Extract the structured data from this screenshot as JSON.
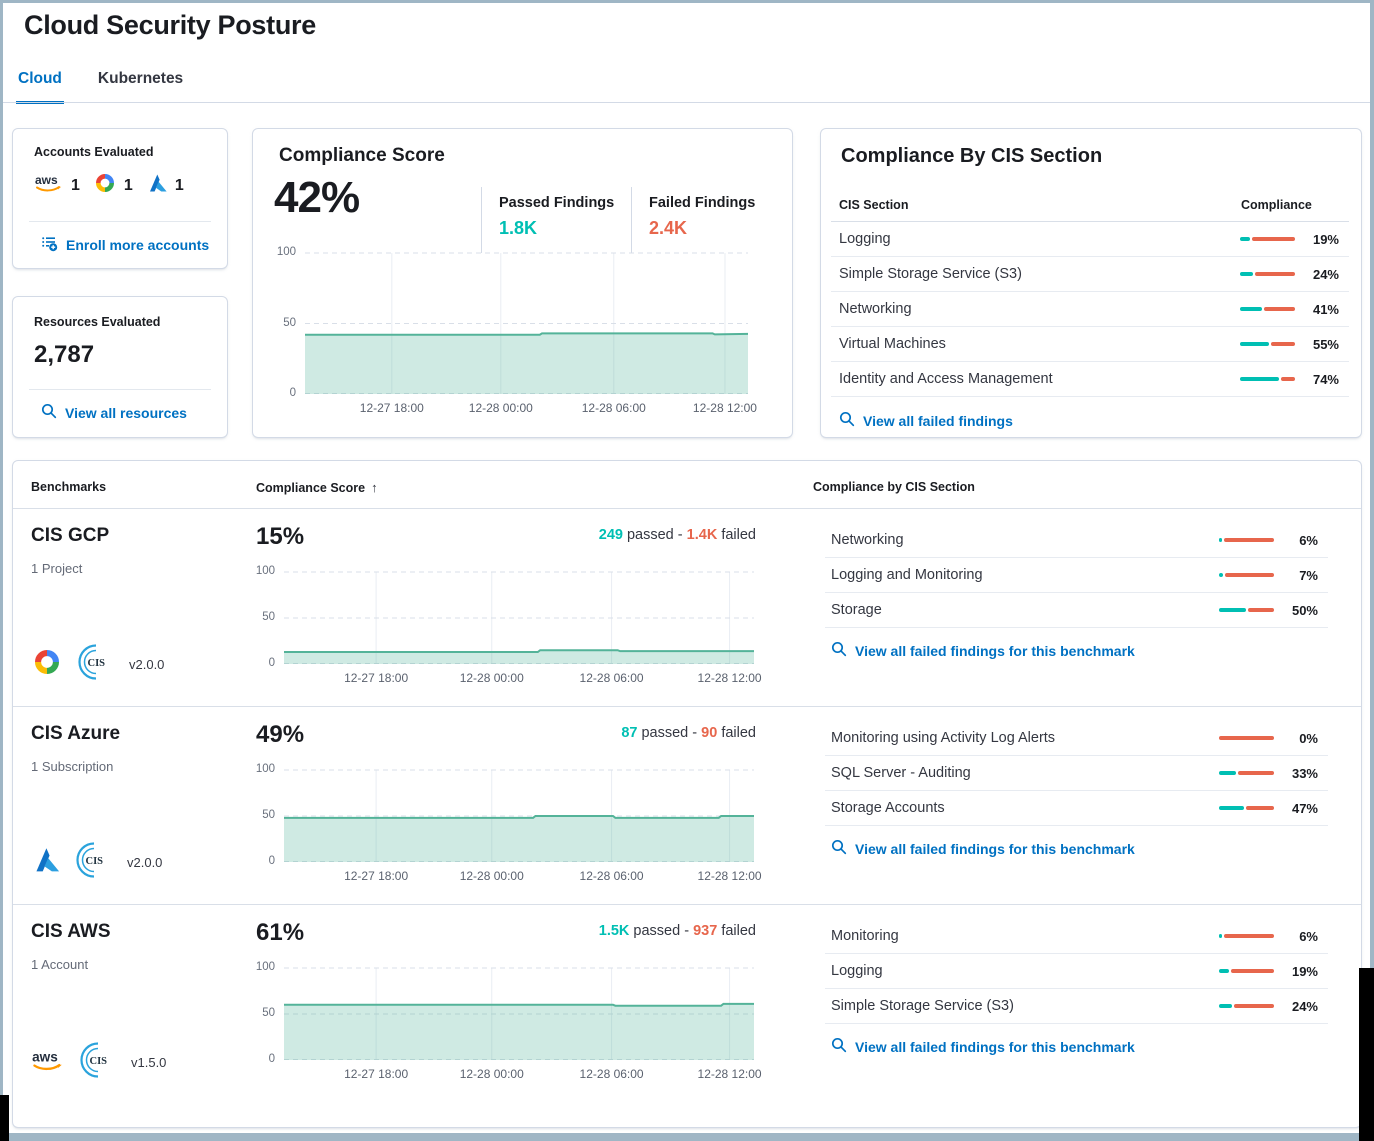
{
  "page_title": "Cloud Security Posture",
  "tabs": {
    "cloud": "Cloud",
    "kubernetes": "Kubernetes"
  },
  "accounts_card": {
    "title": "Accounts Evaluated",
    "aws_count": "1",
    "gcp_count": "1",
    "azure_count": "1",
    "enroll_link": "Enroll more accounts"
  },
  "resources_card": {
    "title": "Resources Evaluated",
    "count": "2,787",
    "view_link": "View all resources"
  },
  "score_card": {
    "title": "Compliance Score",
    "score": "42%",
    "passed_label": "Passed Findings",
    "passed_value": "1.8K",
    "failed_label": "Failed Findings",
    "failed_value": "2.4K",
    "chart": {
      "type": "area",
      "ylim": [
        0,
        100
      ],
      "yticks": [
        {
          "label": "100",
          "value": 100
        },
        {
          "label": "50",
          "value": 50
        },
        {
          "label": "0",
          "value": 0
        }
      ],
      "xticks": [
        {
          "label": "12-27 18:00",
          "pos": 0.196
        },
        {
          "label": "12-28 00:00",
          "pos": 0.442
        },
        {
          "label": "12-28 06:00",
          "pos": 0.697
        },
        {
          "label": "12-28 12:00",
          "pos": 0.948
        }
      ],
      "points": [
        [
          0,
          42
        ],
        [
          0.53,
          42
        ],
        [
          0.535,
          43
        ],
        [
          0.92,
          43
        ],
        [
          0.925,
          42.3
        ],
        [
          1,
          42.6
        ]
      ]
    }
  },
  "cis_card": {
    "title": "Compliance By CIS Section",
    "col_section": "CIS Section",
    "col_compliance": "Compliance",
    "rows": [
      {
        "label": "Logging",
        "pct": 19,
        "pct_label": "19%"
      },
      {
        "label": "Simple Storage Service (S3)",
        "pct": 24,
        "pct_label": "24%"
      },
      {
        "label": "Networking",
        "pct": 41,
        "pct_label": "41%"
      },
      {
        "label": "Virtual Machines",
        "pct": 55,
        "pct_label": "55%"
      },
      {
        "label": "Identity and Access Management",
        "pct": 74,
        "pct_label": "74%"
      }
    ],
    "view_link": "View all failed findings"
  },
  "benchmarks": {
    "col_benchmarks": "Benchmarks",
    "col_score": "Compliance Score",
    "sort_arrow": "↑",
    "col_sections": "Compliance by CIS Section",
    "rows": [
      {
        "name": "CIS GCP",
        "scope": "1 Project",
        "version": "v2.0.0",
        "score": "15%",
        "passed": "249",
        "passed_word": "passed",
        "dash": "-",
        "failed": "1.4K",
        "failed_word": "failed",
        "chart": {
          "type": "area",
          "ylim": [
            0,
            100
          ],
          "yticks": [
            {
              "label": "100",
              "value": 100
            },
            {
              "label": "50",
              "value": 50
            },
            {
              "label": "0",
              "value": 0
            }
          ],
          "xticks": [
            {
              "label": "12-27 18:00",
              "pos": 0.196
            },
            {
              "label": "12-28 00:00",
              "pos": 0.442
            },
            {
              "label": "12-28 06:00",
              "pos": 0.697
            },
            {
              "label": "12-28 12:00",
              "pos": 0.948
            }
          ],
          "points": [
            [
              0,
              13
            ],
            [
              0.54,
              13
            ],
            [
              0.545,
              15
            ],
            [
              0.71,
              15
            ],
            [
              0.715,
              14
            ],
            [
              1,
              14
            ]
          ]
        },
        "sections": [
          {
            "label": "Networking",
            "pct": 6,
            "pct_label": "6%"
          },
          {
            "label": "Logging and Monitoring",
            "pct": 7,
            "pct_label": "7%"
          },
          {
            "label": "Storage",
            "pct": 50,
            "pct_label": "50%"
          }
        ],
        "view_link": "View all failed findings for this benchmark"
      },
      {
        "name": "CIS Azure",
        "scope": "1 Subscription",
        "version": "v2.0.0",
        "score": "49%",
        "passed": "87",
        "passed_word": "passed",
        "dash": "-",
        "failed": "90",
        "failed_word": "failed",
        "chart": {
          "type": "area",
          "ylim": [
            0,
            100
          ],
          "yticks": [
            {
              "label": "100",
              "value": 100
            },
            {
              "label": "50",
              "value": 50
            },
            {
              "label": "0",
              "value": 0
            }
          ],
          "xticks": [
            {
              "label": "12-27 18:00",
              "pos": 0.196
            },
            {
              "label": "12-28 00:00",
              "pos": 0.442
            },
            {
              "label": "12-28 06:00",
              "pos": 0.697
            },
            {
              "label": "12-28 12:00",
              "pos": 0.948
            }
          ],
          "points": [
            [
              0,
              48
            ],
            [
              0.53,
              48
            ],
            [
              0.535,
              50
            ],
            [
              0.7,
              50
            ],
            [
              0.705,
              48
            ],
            [
              0.925,
              48
            ],
            [
              0.93,
              50
            ],
            [
              1,
              50
            ]
          ]
        },
        "sections": [
          {
            "label": "Monitoring using Activity Log Alerts",
            "pct": 0,
            "pct_label": "0%"
          },
          {
            "label": "SQL Server - Auditing",
            "pct": 33,
            "pct_label": "33%"
          },
          {
            "label": "Storage Accounts",
            "pct": 47,
            "pct_label": "47%"
          }
        ],
        "view_link": "View all failed findings for this benchmark"
      },
      {
        "name": "CIS AWS",
        "scope": "1 Account",
        "version": "v1.5.0",
        "score": "61%",
        "passed": "1.5K",
        "passed_word": "passed",
        "dash": "-",
        "failed": "937",
        "failed_word": "failed",
        "chart": {
          "type": "area",
          "ylim": [
            0,
            100
          ],
          "yticks": [
            {
              "label": "100",
              "value": 100
            },
            {
              "label": "50",
              "value": 50
            },
            {
              "label": "0",
              "value": 0
            }
          ],
          "xticks": [
            {
              "label": "12-27 18:00",
              "pos": 0.196
            },
            {
              "label": "12-28 00:00",
              "pos": 0.442
            },
            {
              "label": "12-28 06:00",
              "pos": 0.697
            },
            {
              "label": "12-28 12:00",
              "pos": 0.948
            }
          ],
          "points": [
            [
              0,
              60
            ],
            [
              0.7,
              60
            ],
            [
              0.705,
              59
            ],
            [
              0.93,
              59
            ],
            [
              0.935,
              61
            ],
            [
              1,
              61
            ]
          ]
        },
        "sections": [
          {
            "label": "Monitoring",
            "pct": 6,
            "pct_label": "6%"
          },
          {
            "label": "Logging",
            "pct": 19,
            "pct_label": "19%"
          },
          {
            "label": "Simple Storage Service (S3)",
            "pct": 24,
            "pct_label": "24%"
          }
        ],
        "view_link": "View all failed findings for this benchmark"
      }
    ]
  },
  "colors": {
    "passed_teal": "#00BFB3",
    "failed_red": "#E7664C",
    "link_blue": "#0071C2",
    "chart_green": "#54B399"
  }
}
